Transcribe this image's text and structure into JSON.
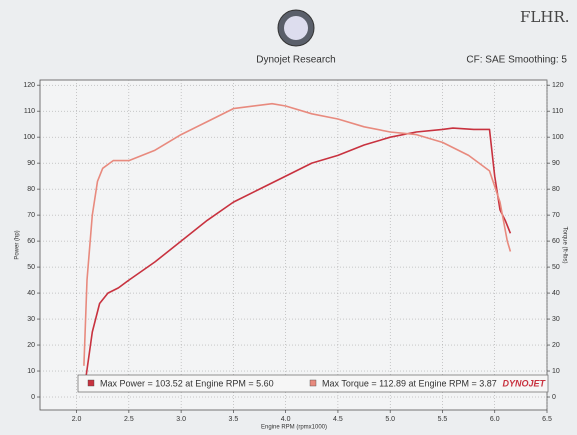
{
  "chart_data": {
    "type": "line",
    "title": "Dynojet Research",
    "subtitle": "CF: SAE Smoothing: 5",
    "annotation": "FLHR.",
    "logo_text": "DYNOJET",
    "xlabel": "Engine RPM (rpmx1000)",
    "ylabel": "Power (hp)",
    "y2label": "Torque (ft-lbs)",
    "xlim": [
      1.65,
      6.5
    ],
    "xticks": [
      {
        "value": 2,
        "label": "2.0"
      },
      2.5,
      {
        "value": 3,
        "label": "3.0"
      },
      3.5,
      {
        "value": 4,
        "label": "4.0"
      },
      4.5,
      {
        "value": 5,
        "label": "5.0"
      },
      5.5,
      {
        "value": 6,
        "label": "6.0"
      },
      6.5
    ],
    "ylim": [
      -5,
      122
    ],
    "yticks": [
      0,
      10,
      20,
      30,
      40,
      50,
      60,
      70,
      80,
      90,
      100,
      110,
      120
    ],
    "y2lim": [
      -5,
      122
    ],
    "y2ticks": [
      0,
      10,
      20,
      30,
      40,
      50,
      60,
      70,
      80,
      90,
      100,
      110,
      120
    ],
    "grid": true,
    "legend": "bottom",
    "series": [
      {
        "name": "Max Power = 103.52 at Engine RPM = 5.60",
        "color": "#c8323f",
        "x": [
          2.08,
          2.15,
          2.22,
          2.3,
          2.4,
          2.5,
          2.75,
          3.0,
          3.25,
          3.5,
          3.75,
          4.0,
          4.25,
          4.5,
          4.75,
          5.0,
          5.25,
          5.5,
          5.6,
          5.8,
          5.95,
          6.0,
          6.05,
          6.1,
          6.15
        ],
        "values": [
          5,
          25,
          36,
          40,
          42,
          45,
          52,
          60,
          68,
          75,
          80,
          85,
          90,
          93,
          97,
          100,
          102,
          103,
          103.5,
          103,
          103,
          85,
          72,
          68,
          63
        ]
      },
      {
        "name": "Max Torque = 112.89 at Engine RPM = 3.87",
        "color": "#e88a7e",
        "axis": "y2",
        "x": [
          2.07,
          2.1,
          2.15,
          2.2,
          2.25,
          2.35,
          2.5,
          2.75,
          3.0,
          3.25,
          3.5,
          3.87,
          4.0,
          4.25,
          4.5,
          4.75,
          5.0,
          5.25,
          5.5,
          5.75,
          5.95,
          6.05,
          6.12,
          6.15
        ],
        "values": [
          12,
          45,
          70,
          83,
          88,
          91,
          91,
          95,
          101,
          106,
          111,
          112.89,
          112,
          109,
          107,
          104,
          102,
          101,
          98,
          93,
          87,
          75,
          60,
          56
        ]
      }
    ]
  }
}
